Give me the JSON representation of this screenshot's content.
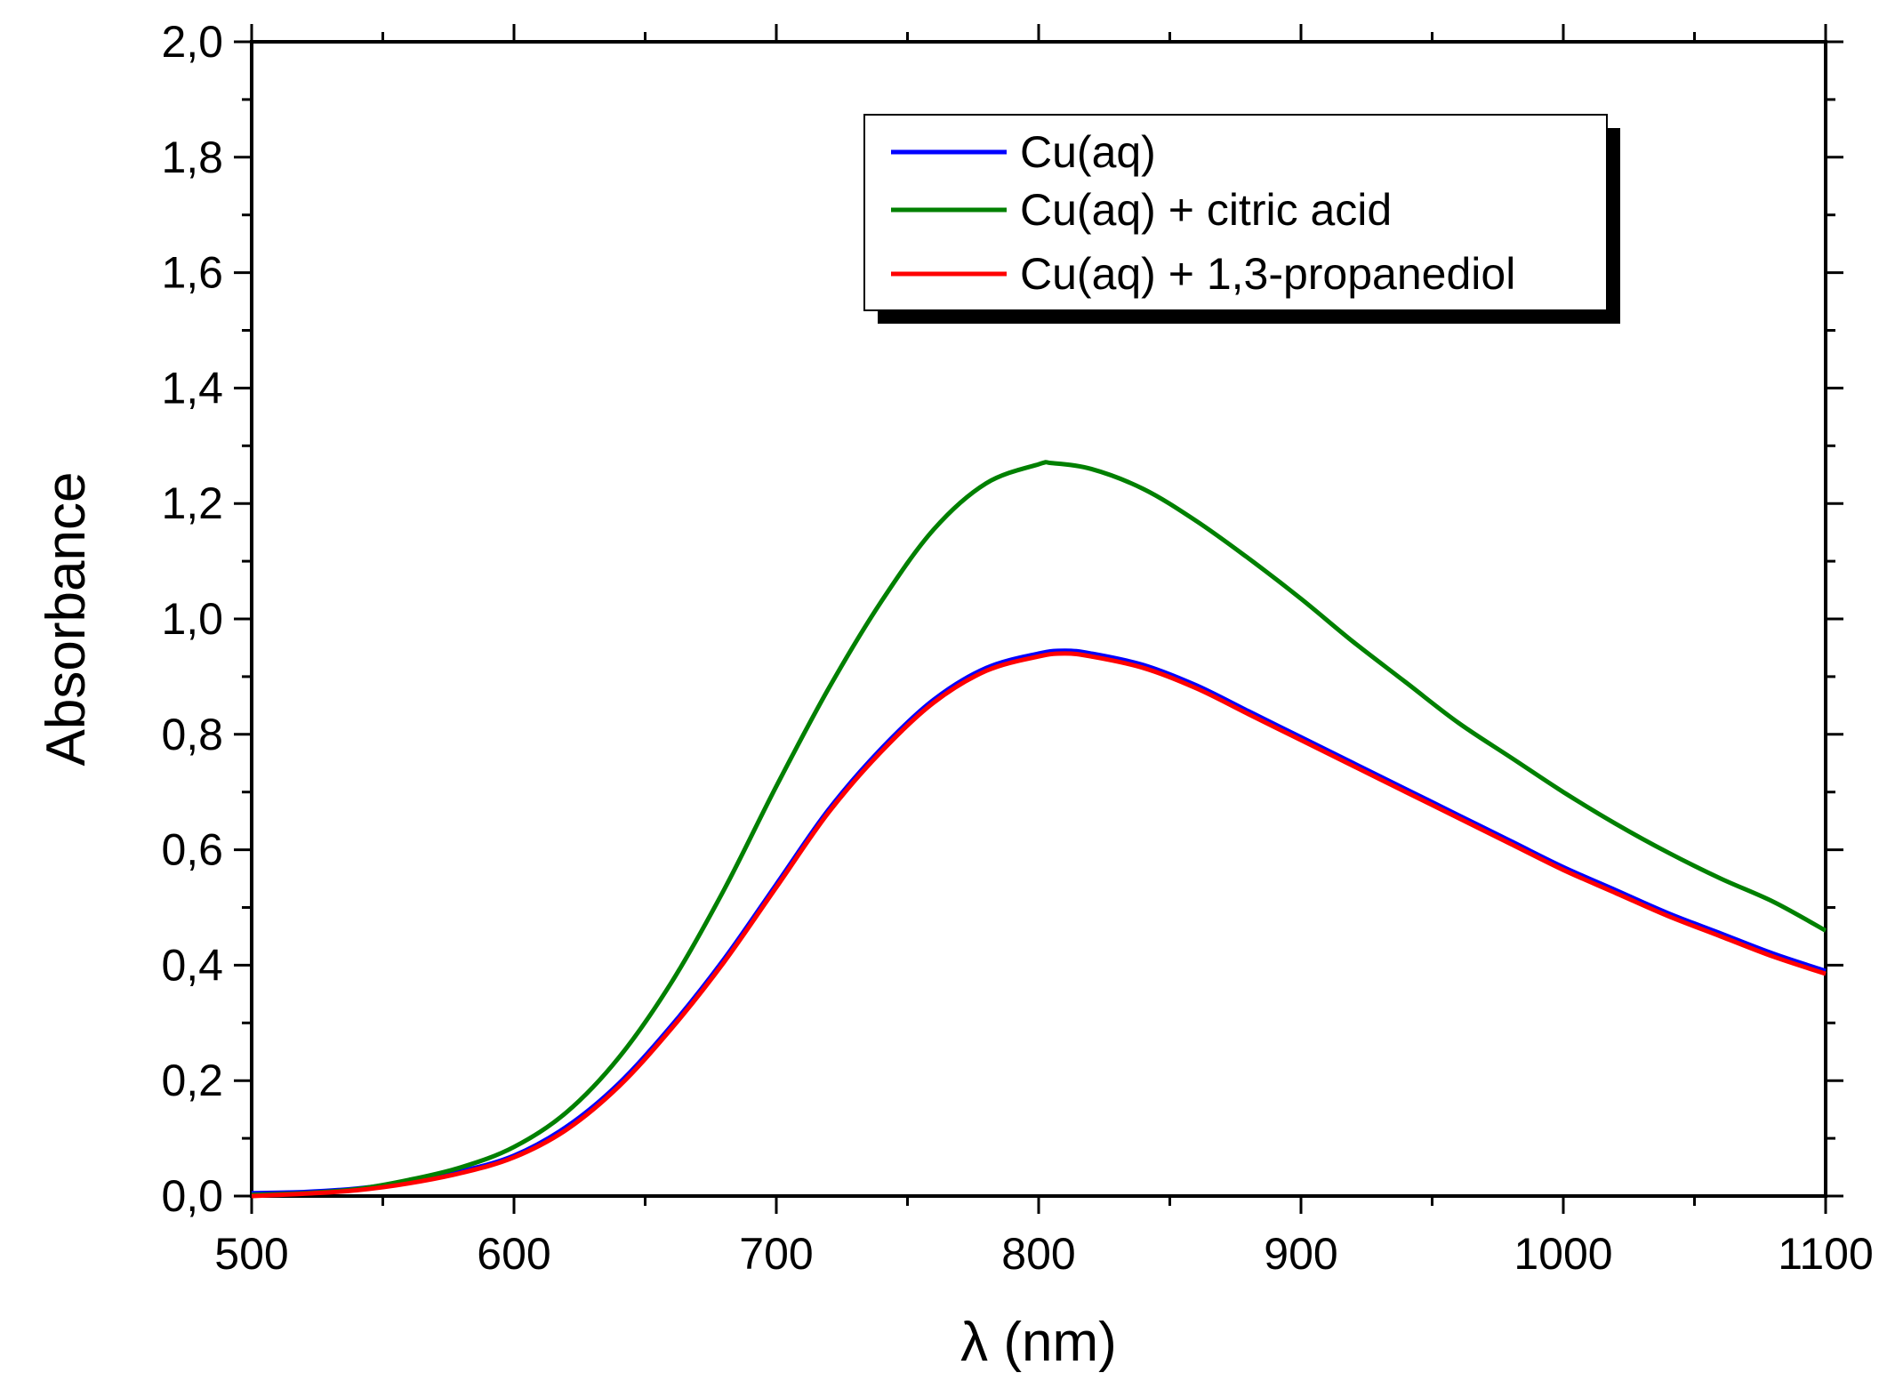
{
  "chart_data": {
    "type": "line",
    "title": "",
    "xlabel": "λ (nm)",
    "ylabel": "Absorbance",
    "xlim": [
      500,
      1100
    ],
    "ylim": [
      0.0,
      2.0
    ],
    "xticks": [
      500,
      600,
      700,
      800,
      900,
      1000,
      1100
    ],
    "yticks": [
      0.0,
      0.2,
      0.4,
      0.6,
      0.8,
      1.0,
      1.2,
      1.4,
      1.6,
      1.8,
      2.0
    ],
    "xtick_labels": [
      "500",
      "600",
      "700",
      "800",
      "900",
      "1000",
      "1100"
    ],
    "ytick_labels": [
      "0,0",
      "0,2",
      "0,4",
      "0,6",
      "0,8",
      "1,0",
      "1,2",
      "1,4",
      "1,6",
      "1,8",
      "2,0"
    ],
    "grid": false,
    "legend_position": "top-right",
    "series": [
      {
        "name": "Cu(aq)",
        "color": "#0000ff",
        "x": [
          500,
          520,
          540,
          560,
          580,
          600,
          620,
          640,
          660,
          680,
          700,
          720,
          740,
          760,
          780,
          800,
          810,
          820,
          840,
          860,
          880,
          900,
          920,
          940,
          960,
          980,
          1000,
          1020,
          1040,
          1060,
          1080,
          1100
        ],
        "y": [
          0.005,
          0.007,
          0.013,
          0.025,
          0.043,
          0.07,
          0.12,
          0.195,
          0.295,
          0.41,
          0.54,
          0.67,
          0.775,
          0.86,
          0.915,
          0.94,
          0.945,
          0.94,
          0.92,
          0.885,
          0.84,
          0.795,
          0.75,
          0.705,
          0.66,
          0.615,
          0.57,
          0.53,
          0.49,
          0.455,
          0.42,
          0.39
        ]
      },
      {
        "name": "Cu(aq) + citric acid",
        "color": "#008000",
        "x": [
          500,
          520,
          540,
          560,
          580,
          600,
          620,
          640,
          660,
          680,
          700,
          720,
          740,
          760,
          780,
          800,
          805,
          820,
          840,
          860,
          880,
          900,
          920,
          940,
          960,
          980,
          1000,
          1020,
          1040,
          1060,
          1080,
          1100
        ],
        "y": [
          0.002,
          0.005,
          0.012,
          0.028,
          0.05,
          0.085,
          0.145,
          0.24,
          0.37,
          0.53,
          0.71,
          0.88,
          1.03,
          1.155,
          1.235,
          1.268,
          1.27,
          1.26,
          1.225,
          1.17,
          1.105,
          1.035,
          0.96,
          0.89,
          0.82,
          0.76,
          0.7,
          0.645,
          0.595,
          0.55,
          0.51,
          0.46
        ]
      },
      {
        "name": "Cu(aq) + 1,3-propanediol",
        "color": "#ff0000",
        "x": [
          500,
          520,
          540,
          560,
          580,
          600,
          620,
          640,
          660,
          680,
          700,
          720,
          740,
          760,
          780,
          800,
          810,
          820,
          840,
          860,
          880,
          900,
          920,
          940,
          960,
          980,
          1000,
          1020,
          1040,
          1060,
          1080,
          1100
        ],
        "y": [
          0.0,
          0.004,
          0.01,
          0.022,
          0.04,
          0.067,
          0.115,
          0.19,
          0.29,
          0.405,
          0.535,
          0.665,
          0.77,
          0.855,
          0.91,
          0.935,
          0.94,
          0.935,
          0.915,
          0.88,
          0.835,
          0.79,
          0.745,
          0.7,
          0.655,
          0.61,
          0.565,
          0.525,
          0.485,
          0.45,
          0.415,
          0.385
        ]
      }
    ]
  }
}
